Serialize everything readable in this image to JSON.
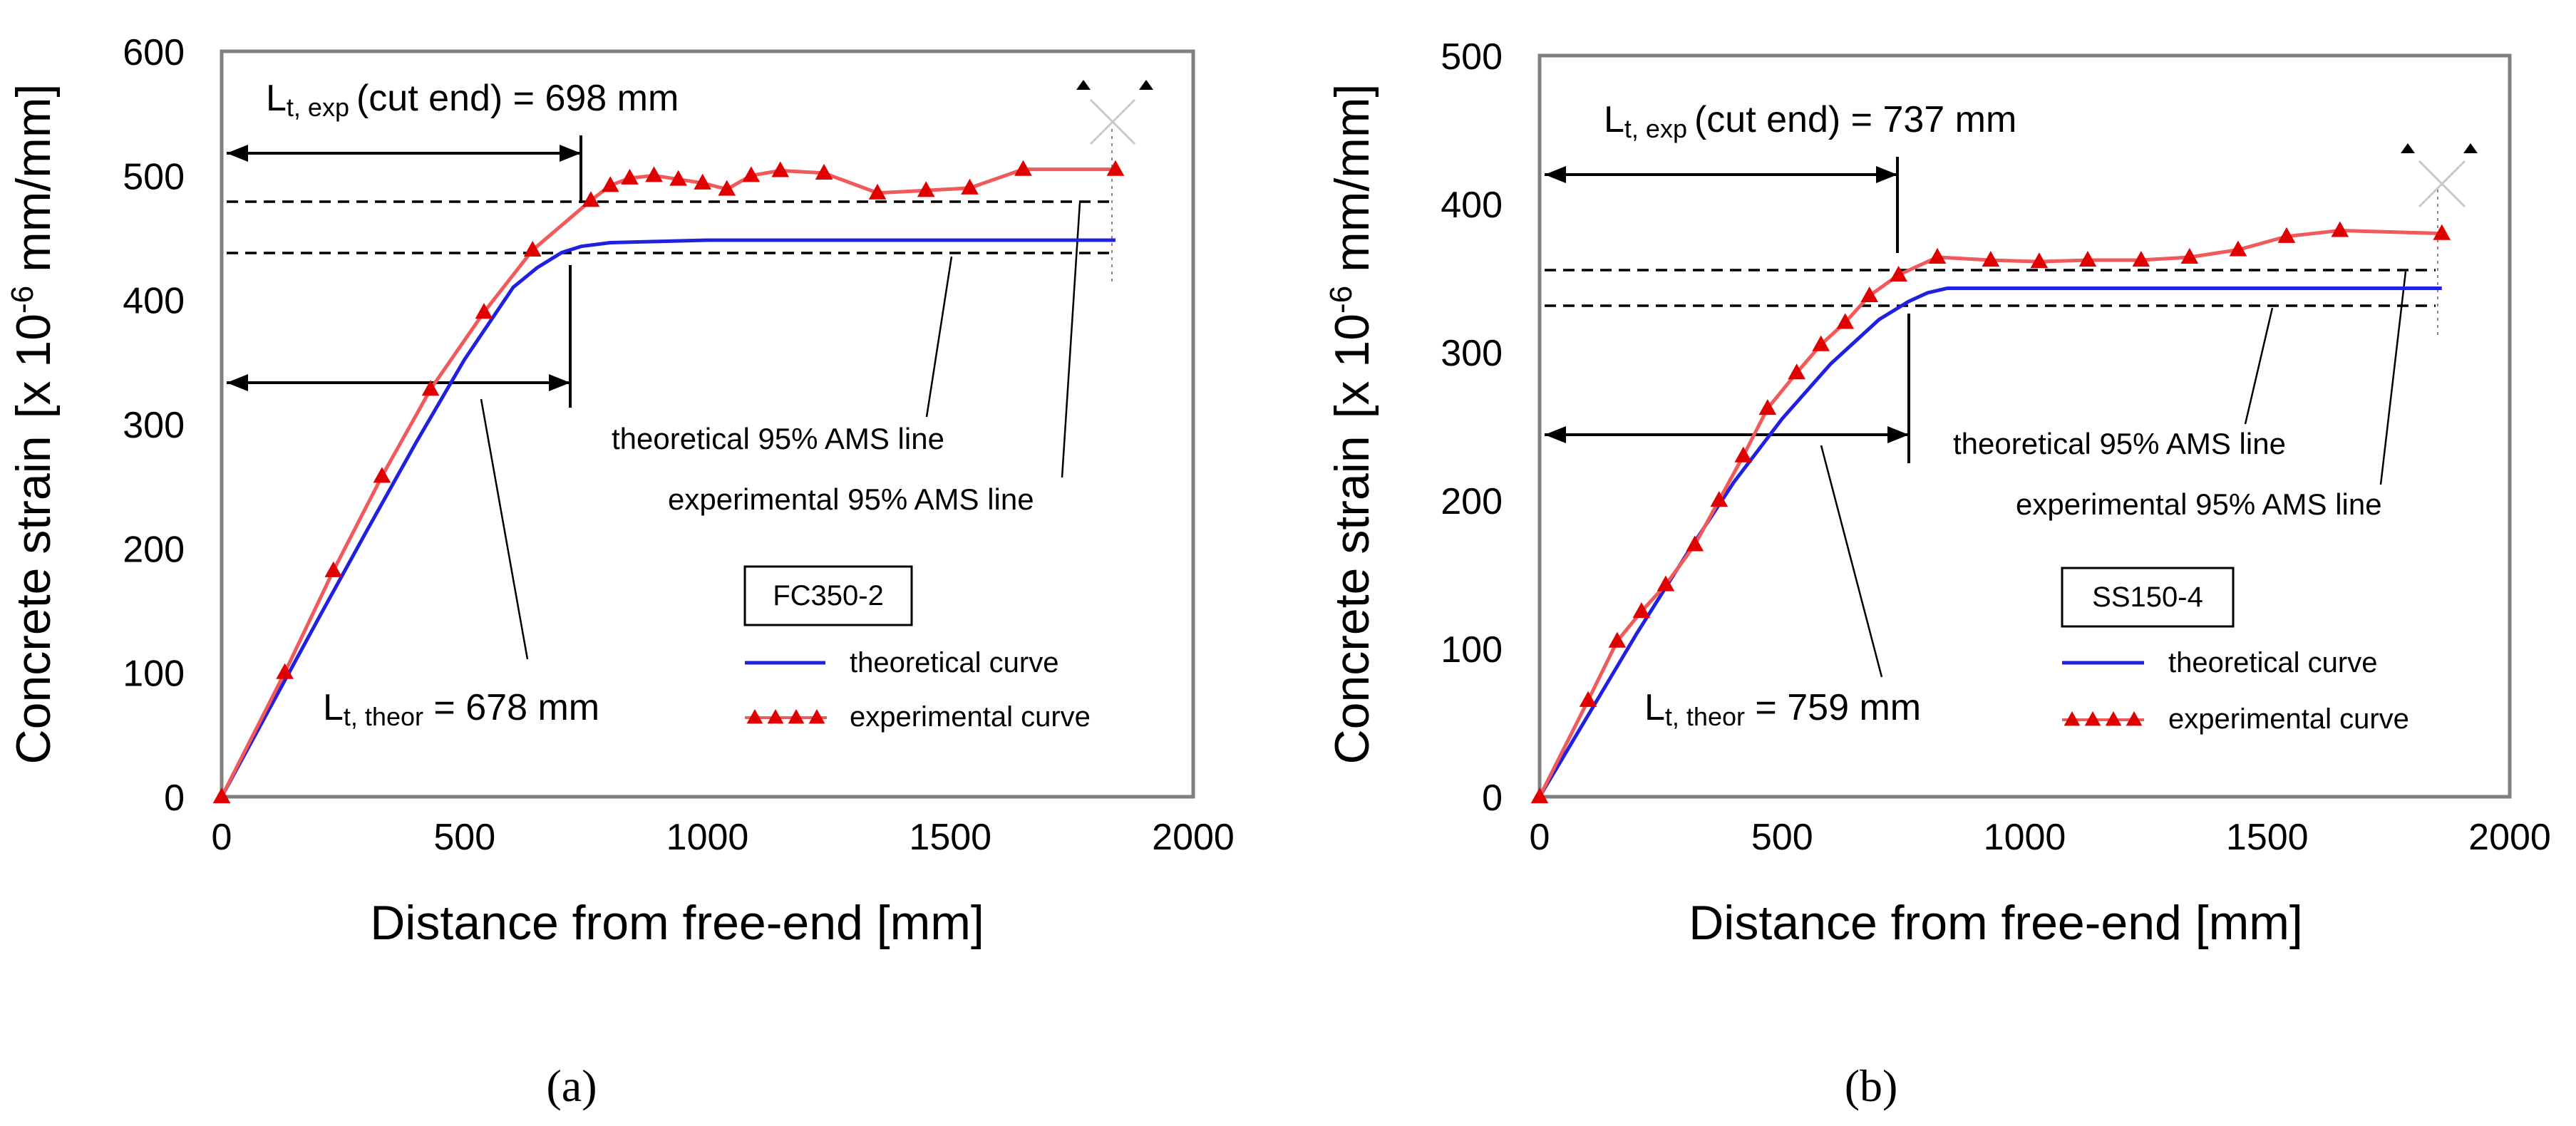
{
  "chart_data": [
    {
      "type": "line",
      "panel_label": "(a)",
      "ylabel_main": "Concrete strain",
      "ylabel_unit_prefix": "[x 10",
      "ylabel_exponent": "-6",
      "ylabel_unit_suffix": " mm/mm]",
      "xlabel": "Distance from free-end  [mm]",
      "xlim": [
        0,
        2000
      ],
      "ylim": [
        0,
        600
      ],
      "x_ticks": [
        0,
        500,
        1000,
        1500,
        2000
      ],
      "y_ticks": [
        0,
        100,
        200,
        300,
        400,
        500,
        600
      ],
      "legend_box_label": "FC350-2",
      "series": [
        {
          "name": "theoretical curve",
          "color": "#2020e0",
          "marker": "none",
          "x": [
            0,
            100,
            200,
            300,
            400,
            500,
            600,
            650,
            700,
            740,
            800,
            900,
            1000,
            1200,
            1500,
            1840
          ],
          "y": [
            0,
            72,
            144,
            215,
            285,
            352,
            410,
            426,
            438,
            443,
            446,
            447,
            448,
            448,
            448,
            448
          ]
        },
        {
          "name": "experimental curve",
          "color": "#e00000",
          "line_color": "#f05a5a",
          "marker": "triangle",
          "x": [
            0,
            130,
            230,
            330,
            430,
            540,
            640,
            760,
            800,
            840,
            890,
            940,
            990,
            1040,
            1090,
            1150,
            1240,
            1350,
            1450,
            1540,
            1650,
            1840
          ],
          "y": [
            0,
            100,
            182,
            258,
            328,
            390,
            440,
            480,
            492,
            498,
            500,
            497,
            494,
            489,
            500,
            504,
            502,
            486,
            488,
            490,
            505,
            505
          ]
        }
      ],
      "reference_lines": {
        "experimental_95_ams": 477,
        "theoretical_95_ams": 436
      },
      "annotations": {
        "lt_exp_main": "L",
        "lt_exp_sub": "t, exp",
        "lt_exp_text": "(cut end) = 698 mm",
        "lt_exp_value_mm": 698,
        "lt_theor_main": "L",
        "lt_theor_sub": "t, theor",
        "lt_theor_text": " = 678 mm",
        "lt_theor_value_mm": 678,
        "theoretical_line_label": "theoretical 95% AMS line",
        "experimental_line_label": "experimental 95% AMS line"
      }
    },
    {
      "type": "line",
      "panel_label": "(b)",
      "ylabel_main": "Concrete strain",
      "ylabel_unit_prefix": "[x 10",
      "ylabel_exponent": "-6",
      "ylabel_unit_suffix": " mm/mm]",
      "xlabel": "Distance from free-end  [mm]",
      "xlim": [
        0,
        2000
      ],
      "ylim": [
        0,
        500
      ],
      "x_ticks": [
        0,
        500,
        1000,
        1500,
        2000
      ],
      "y_ticks": [
        0,
        100,
        200,
        300,
        400,
        500
      ],
      "legend_box_label": "SS150-4",
      "series": [
        {
          "name": "theoretical curve",
          "color": "#2020e0",
          "marker": "none",
          "x": [
            0,
            100,
            200,
            300,
            400,
            500,
            600,
            700,
            760,
            800,
            840,
            900,
            1200,
            1500,
            1860
          ],
          "y": [
            0,
            55,
            110,
            162,
            212,
            255,
            292,
            322,
            334,
            340,
            343,
            343,
            343,
            343,
            343
          ]
        },
        {
          "name": "experimental curve",
          "color": "#e00000",
          "line_color": "#f05a5a",
          "marker": "triangle",
          "x": [
            0,
            100,
            160,
            210,
            260,
            320,
            370,
            420,
            470,
            530,
            580,
            630,
            680,
            740,
            820,
            930,
            1030,
            1130,
            1240,
            1340,
            1440,
            1540,
            1650,
            1860
          ],
          "y": [
            0,
            65,
            105,
            125,
            143,
            170,
            200,
            230,
            262,
            286,
            305,
            320,
            338,
            352,
            364,
            362,
            361,
            362,
            362,
            364,
            369,
            378,
            382,
            380
          ]
        }
      ],
      "reference_lines": {
        "experimental_95_ams": 355,
        "theoretical_95_ams": 331
      },
      "annotations": {
        "lt_exp_main": "L",
        "lt_exp_sub": "t, exp",
        "lt_exp_text": "(cut end) = 737 mm",
        "lt_exp_value_mm": 737,
        "lt_theor_main": "L",
        "lt_theor_sub": "t, theor",
        "lt_theor_text": " = 759 mm",
        "lt_theor_value_mm": 759,
        "theoretical_line_label": "theoretical 95% AMS line",
        "experimental_line_label": "experimental 95% AMS line"
      }
    }
  ]
}
